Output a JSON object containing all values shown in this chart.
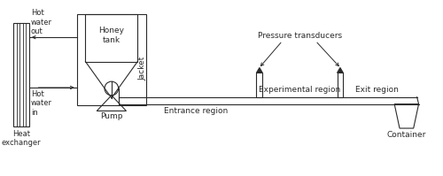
{
  "bg_color": "#ffffff",
  "line_color": "#2a2a2a",
  "labels": {
    "hot_water_out": "Hot\nwater\nout",
    "hot_water_in": "Hot\nwater\nin",
    "honey_tank": "Honey\ntank",
    "jacket": "Jacket",
    "pump": "Pump",
    "heat_exchanger": "Heat\nexchanger",
    "entrance_region": "Entrance region",
    "experimental_region": "Experimental region",
    "exit_region": "Exit region",
    "pressure_transducers": "Pressure transducers",
    "container": "Container"
  },
  "fontsize": 6.5
}
